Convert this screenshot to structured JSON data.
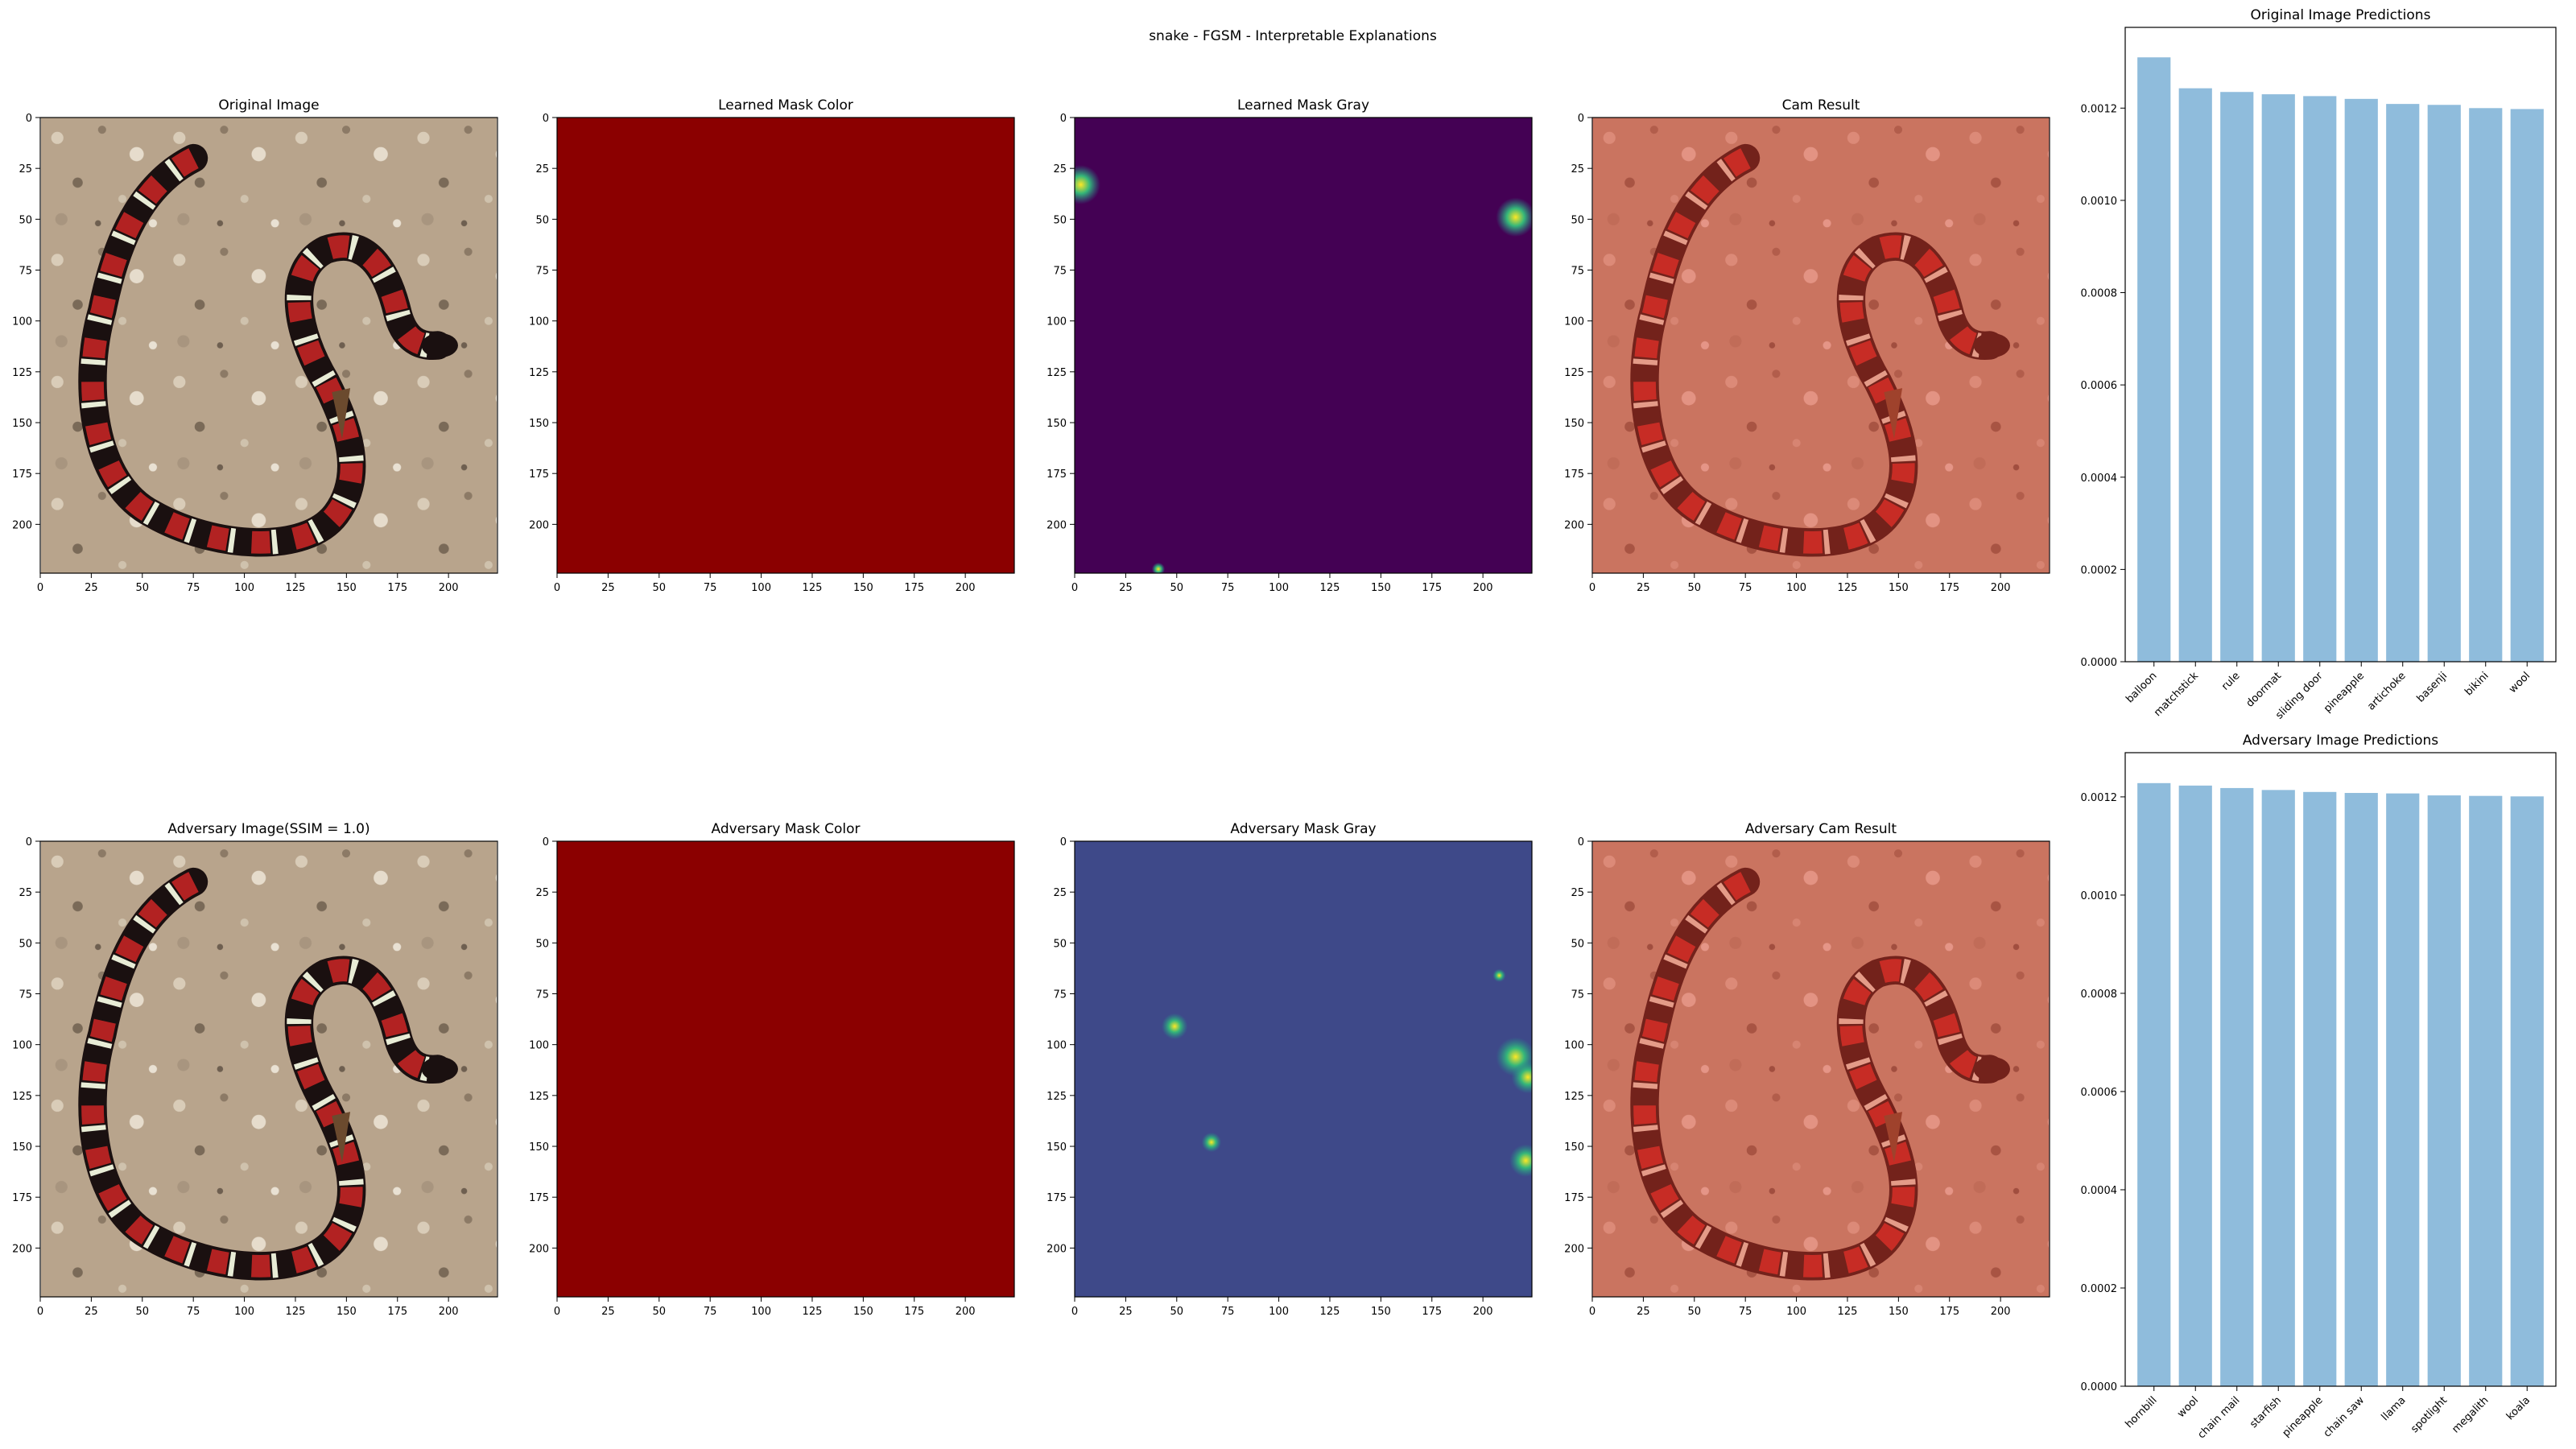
{
  "figure": {
    "title": "snake - FGSM - Interpretable Explanations"
  },
  "colors": {
    "bar": "#8fbcdc",
    "mask_red": "#8b0000",
    "viridis_dark": "#440154",
    "viridis_mid": "#3e4989",
    "viridis_green": "#35b779",
    "viridis_yellow": "#fde725"
  },
  "panels": [
    {
      "title": "Original Image",
      "kind": "snake-image",
      "overlay": "none"
    },
    {
      "title": "Learned Mask Color",
      "kind": "solid-mask",
      "overlay": "none"
    },
    {
      "title": "Learned Mask Gray",
      "kind": "gray-mask",
      "overlay": "none"
    },
    {
      "title": "Cam Result",
      "kind": "snake-image",
      "overlay": "red"
    },
    {
      "title": "Adversary Image(SSIM = 1.0)",
      "kind": "snake-image",
      "overlay": "none"
    },
    {
      "title": "Adversary Mask Color",
      "kind": "solid-mask",
      "overlay": "none"
    },
    {
      "title": "Adversary Mask Gray",
      "kind": "gray-mask",
      "overlay": "none"
    },
    {
      "title": "Adversary Cam Result",
      "kind": "snake-image",
      "overlay": "red"
    }
  ],
  "image_axes": {
    "ticks": [
      0,
      25,
      50,
      75,
      100,
      125,
      150,
      175,
      200
    ],
    "range": [
      0,
      224
    ]
  },
  "gray_masks": [
    {
      "background": "#440154",
      "blobs": [
        {
          "x": 3,
          "y": 33,
          "r": 6
        },
        {
          "x": 216,
          "y": 49,
          "r": 6
        },
        {
          "x": 41,
          "y": 222,
          "r": 2
        }
      ]
    },
    {
      "background": "#3e4989",
      "blobs": [
        {
          "x": 49,
          "y": 91,
          "r": 4
        },
        {
          "x": 67,
          "y": 148,
          "r": 3
        },
        {
          "x": 208,
          "y": 66,
          "r": 2
        },
        {
          "x": 216,
          "y": 106,
          "r": 6
        },
        {
          "x": 222,
          "y": 116,
          "r": 5
        },
        {
          "x": 221,
          "y": 157,
          "r": 5
        }
      ]
    }
  ],
  "chart_data": [
    {
      "type": "bar",
      "title": "Original Image Predictions",
      "categories": [
        "balloon",
        "matchstick",
        "rule",
        "doormat",
        "sliding door",
        "pineapple",
        "artichoke",
        "basenji",
        "bikini",
        "wool"
      ],
      "values": [
        0.00131,
        0.001243,
        0.001235,
        0.00123,
        0.001226,
        0.00122,
        0.001209,
        0.001207,
        0.0012,
        0.001198
      ],
      "yticks": [
        "0.0000",
        "0.0002",
        "0.0004",
        "0.0006",
        "0.0008",
        "0.0010",
        "0.0012"
      ],
      "ylim": [
        0,
        0.001375
      ]
    },
    {
      "type": "bar",
      "title": "Adversary Image Predictions",
      "categories": [
        "hornbill",
        "wool",
        "chain mail",
        "starfish",
        "pineapple",
        "chain saw",
        "llama",
        "spotlight",
        "megalith",
        "koala"
      ],
      "values": [
        0.001228,
        0.001223,
        0.001218,
        0.001214,
        0.00121,
        0.001208,
        0.001207,
        0.001203,
        0.001202,
        0.001201
      ],
      "yticks": [
        "0.0000",
        "0.0002",
        "0.0004",
        "0.0006",
        "0.0008",
        "0.0010",
        "0.0012"
      ],
      "ylim": [
        0,
        0.00129
      ]
    }
  ]
}
